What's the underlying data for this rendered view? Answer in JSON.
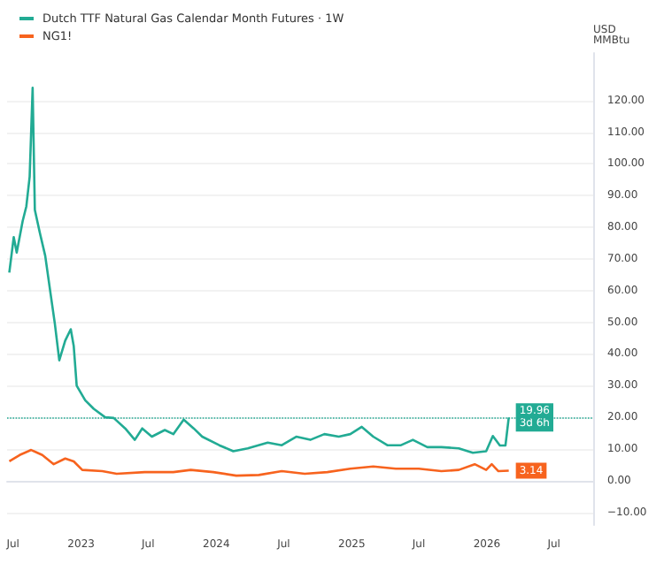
{
  "chart_data": {
    "type": "line",
    "ylabel": "USD\nMMBtu",
    "legend": "top left",
    "grid": "y",
    "marker": "none",
    "line_style": "solid",
    "xlim": [
      "2022-06-15",
      "2026-10-15"
    ],
    "xticks": [
      {
        "value": "2022-07-01",
        "label": "Jul"
      },
      {
        "value": "2023-01-01",
        "label": "2023"
      },
      {
        "value": "2023-07-01",
        "label": "Jul"
      },
      {
        "value": "2024-01-01",
        "label": "2024"
      },
      {
        "value": "2024-07-01",
        "label": "Jul"
      },
      {
        "value": "2025-01-01",
        "label": "2025"
      },
      {
        "value": "2025-07-01",
        "label": "Jul"
      },
      {
        "value": "2026-01-01",
        "label": "2026"
      },
      {
        "value": "2026-07-01",
        "label": "Jul"
      }
    ],
    "ylim": [
      -14,
      135
    ],
    "yticks": [
      {
        "value": -10,
        "label": "−10.00"
      },
      {
        "value": 0,
        "label": "0.00"
      },
      {
        "value": 10,
        "label": "10.00"
      },
      {
        "value": 20,
        "label": "20.00"
      },
      {
        "value": 30,
        "label": "30.00"
      },
      {
        "value": 40,
        "label": "40.00"
      },
      {
        "value": 50,
        "label": "50.00"
      },
      {
        "value": 60,
        "label": "60.00"
      },
      {
        "value": 70,
        "label": "70.00"
      },
      {
        "value": 80,
        "label": "80.00"
      },
      {
        "value": 90,
        "label": "90.00"
      },
      {
        "value": 100,
        "label": "100.00"
      },
      {
        "value": 110,
        "label": "110.00"
      },
      {
        "value": 120,
        "label": "120.00"
      }
    ],
    "ref_lines": [
      {
        "axis": "y",
        "value": 19.96,
        "label": null,
        "color": "#22ab94",
        "line_style": "dotted"
      }
    ],
    "series": [
      {
        "name": "Dutch TTF Natural Gas Calendar Month Futures · 1W",
        "color": "#22ab94",
        "x": [
          "2022-06-21",
          "2022-07-03",
          "2022-07-11",
          "2022-07-27",
          "2022-08-06",
          "2022-08-15",
          "2022-08-23",
          "2022-08-29",
          "2022-09-11",
          "2022-09-26",
          "2022-10-11",
          "2022-10-22",
          "2022-11-03",
          "2022-11-19",
          "2022-12-04",
          "2022-12-12",
          "2022-12-20",
          "2023-01-12",
          "2023-02-04",
          "2023-03-07",
          "2023-03-30",
          "2023-04-30",
          "2023-05-26",
          "2023-06-15",
          "2023-07-11",
          "2023-08-15",
          "2023-09-07",
          "2023-10-05",
          "2023-11-01",
          "2023-11-24",
          "2024-01-09",
          "2024-02-16",
          "2024-03-26",
          "2024-05-19",
          "2024-06-26",
          "2024-08-04",
          "2024-09-11",
          "2024-10-19",
          "2024-11-27",
          "2024-12-28",
          "2025-01-28",
          "2025-02-28",
          "2025-04-07",
          "2025-05-14",
          "2025-06-15",
          "2025-07-24",
          "2025-08-31",
          "2025-10-17",
          "2025-11-24",
          "2025-12-30",
          "2026-01-17",
          "2026-02-05",
          "2026-02-20",
          "2026-03-01"
        ],
        "values": [
          65.7,
          76.9,
          72,
          81.9,
          86.6,
          96,
          124,
          85.5,
          78.5,
          71,
          58.6,
          49.6,
          38,
          44.2,
          47.8,
          42.5,
          30,
          25.4,
          22.7,
          20,
          19.8,
          16.5,
          12.9,
          16.5,
          13.9,
          16,
          14.7,
          19.3,
          16.5,
          13.9,
          11.2,
          9.3,
          10.2,
          12,
          11.2,
          13.9,
          12.9,
          14.7,
          13.9,
          14.7,
          17,
          13.9,
          11.2,
          11.2,
          12.9,
          10.6,
          10.6,
          10.2,
          8.8,
          9.3,
          14.1,
          11.1,
          11.1,
          19.96
        ],
        "value_labels": [
          null,
          null,
          null,
          null,
          null,
          null,
          null,
          null,
          null,
          null,
          null,
          null,
          null,
          null,
          null,
          null,
          null,
          null,
          null,
          null,
          null,
          null,
          null,
          null,
          null,
          null,
          null,
          null,
          null,
          null,
          null,
          null,
          null,
          null,
          null,
          null,
          null,
          null,
          null,
          null,
          null,
          null,
          null,
          null,
          null,
          null,
          null,
          null,
          null,
          null,
          null,
          null,
          null,
          "19.96\n3d 6h"
        ]
      },
      {
        "name": "NG1!",
        "color": "#f7631e",
        "x": [
          "2022-06-21",
          "2022-07-19",
          "2022-08-19",
          "2022-09-18",
          "2022-10-19",
          "2022-11-19",
          "2022-12-12",
          "2023-01-04",
          "2023-02-27",
          "2023-04-07",
          "2023-06-22",
          "2023-09-07",
          "2023-10-24",
          "2023-12-24",
          "2024-02-24",
          "2024-04-25",
          "2024-06-26",
          "2024-08-27",
          "2024-10-27",
          "2024-12-28",
          "2025-02-28",
          "2025-04-30",
          "2025-07-01",
          "2025-08-31",
          "2025-10-17",
          "2025-11-29",
          "2025-12-30",
          "2026-01-14",
          "2026-02-01",
          "2026-03-01"
        ],
        "values": [
          6.1,
          8.1,
          9.7,
          8.1,
          5.2,
          7,
          6.1,
          3.4,
          3,
          2.2,
          2.7,
          2.7,
          3.4,
          2.7,
          1.6,
          1.8,
          3,
          2.2,
          2.7,
          3.8,
          4.5,
          3.8,
          3.8,
          3,
          3.4,
          5.2,
          3.4,
          5.2,
          3,
          3.14
        ],
        "value_labels": [
          null,
          null,
          null,
          null,
          null,
          null,
          null,
          null,
          null,
          null,
          null,
          null,
          null,
          null,
          null,
          null,
          null,
          null,
          null,
          null,
          null,
          null,
          null,
          null,
          null,
          null,
          null,
          null,
          null,
          "3.14"
        ]
      }
    ]
  }
}
